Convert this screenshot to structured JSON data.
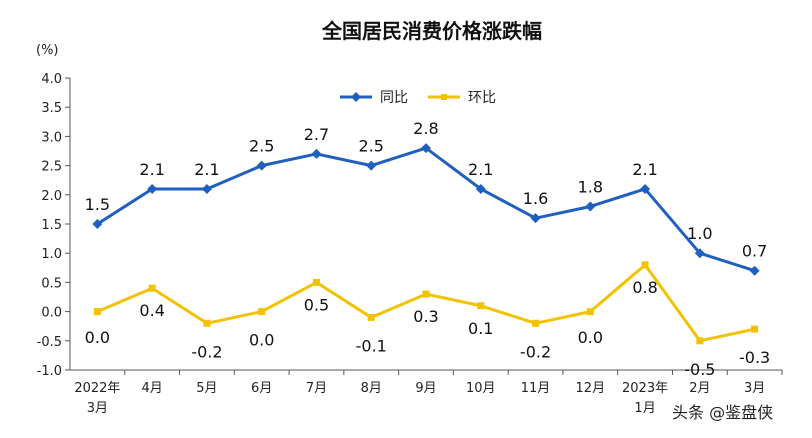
{
  "chart_data": {
    "type": "line",
    "title": "全国居民消费价格涨跌幅",
    "unit_label": "(%)",
    "categories": [
      [
        "2022年",
        "3月"
      ],
      [
        "4月"
      ],
      [
        "5月"
      ],
      [
        "6月"
      ],
      [
        "7月"
      ],
      [
        "8月"
      ],
      [
        "9月"
      ],
      [
        "10月"
      ],
      [
        "11月"
      ],
      [
        "12月"
      ],
      [
        "2023年",
        "1月"
      ],
      [
        "2月"
      ],
      [
        "3月"
      ]
    ],
    "ylim": [
      -1.0,
      4.0
    ],
    "yticks": [
      "4.0",
      "3.5",
      "3.0",
      "2.5",
      "2.0",
      "1.5",
      "1.0",
      "0.5",
      "0.0",
      "-0.5",
      "-1.0"
    ],
    "legend_position": "top",
    "series": [
      {
        "name": "同比",
        "color": "#1f5fbf",
        "marker": "diamond",
        "values": [
          1.5,
          2.1,
          2.1,
          2.5,
          2.7,
          2.5,
          2.8,
          2.1,
          1.6,
          1.8,
          2.1,
          1.0,
          0.7
        ],
        "labels": [
          "1.5",
          "2.1",
          "2.1",
          "2.5",
          "2.7",
          "2.5",
          "2.8",
          "2.1",
          "1.6",
          "1.8",
          "2.1",
          "1.0",
          "0.7"
        ]
      },
      {
        "name": "环比",
        "color": "#f2c200",
        "marker": "square",
        "values": [
          0.0,
          0.4,
          -0.2,
          0.0,
          0.5,
          -0.1,
          0.3,
          0.1,
          -0.2,
          0.0,
          0.8,
          -0.5,
          -0.3
        ],
        "labels": [
          "0.0",
          "0.4",
          "-0.2",
          "0.0",
          "0.5",
          "-0.1",
          "0.3",
          "0.1",
          "-0.2",
          "0.0",
          "0.8",
          "-0.5",
          "-0.3"
        ]
      }
    ]
  },
  "watermark": "头条 @鉴盘侠"
}
